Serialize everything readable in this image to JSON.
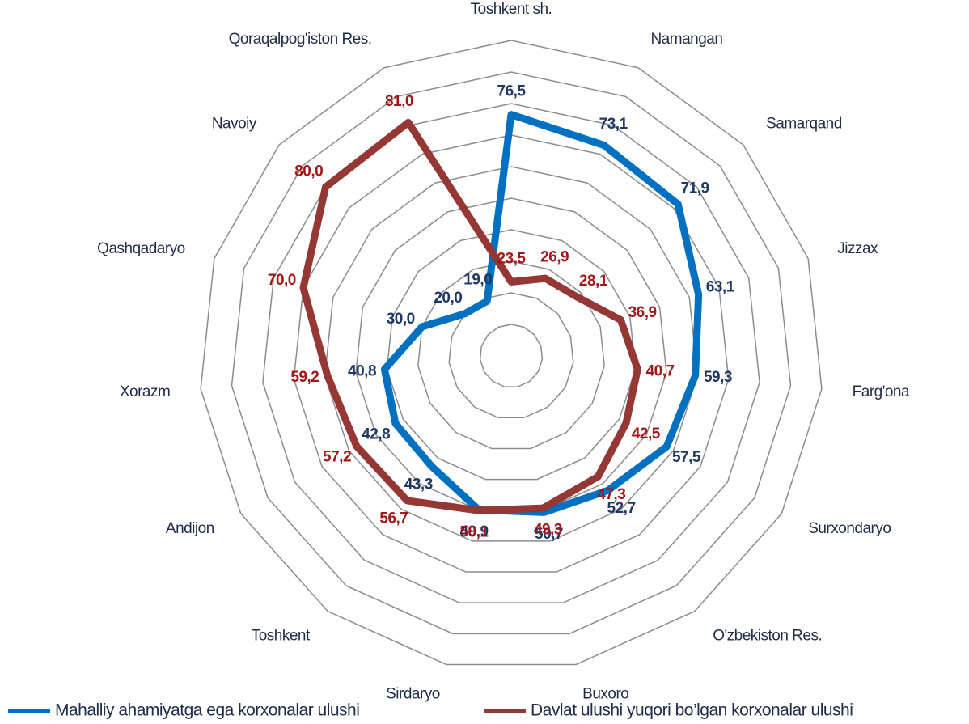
{
  "chart_data": {
    "type": "radar",
    "categories": [
      "Toshkent sh.",
      "Namangan",
      "Samarqand",
      "Jizzax",
      "Farg'ona",
      "Surxondaryo",
      "O'zbekiston Res.",
      "Buxoro",
      "Sirdaryo",
      "Toshkent",
      "Andijon",
      "Xorazm",
      "Qashqadaryo",
      "Navoiy",
      "Qoraqalpog'iston Res."
    ],
    "series": [
      {
        "name": "Mahalliy ahamiyatga ega korxonalar ulushi",
        "color": "#0070c0",
        "label_color": "#1f3864",
        "values": [
          76.5,
          73.1,
          71.9,
          63.1,
          59.3,
          57.5,
          52.7,
          50.7,
          49.9,
          43.3,
          42.8,
          40.8,
          30.0,
          20.0,
          19.0
        ],
        "value_labels": [
          "76,5",
          "73,1",
          "71,9",
          "63,1",
          "59,3",
          "57,5",
          "52,7",
          "50,7",
          "49,9",
          "43,3",
          "42,8",
          "40,8",
          "30,0",
          "20,0",
          "19,0"
        ]
      },
      {
        "name": "Davlat ulushi yuqori bo’lgan korxonalar ulushi",
        "color": "#953735",
        "label_color": "#a01818",
        "values": [
          23.5,
          26.9,
          28.1,
          36.9,
          40.7,
          42.5,
          47.3,
          49.3,
          50.1,
          56.7,
          57.2,
          59.2,
          70.0,
          80.0,
          81.0
        ],
        "value_labels": [
          "23,5",
          "26,9",
          "28,1",
          "36,9",
          "40,7",
          "42,5",
          "47,3",
          "49,3",
          "50,1",
          "56,7",
          "57,2",
          "59,2",
          "70,0",
          "80,0",
          "81,0"
        ]
      }
    ],
    "ylim": [
      0,
      100
    ],
    "yticks": [
      10,
      20,
      30,
      40,
      50,
      60,
      70,
      80,
      90,
      100
    ],
    "grid": true,
    "legend": "bottom"
  }
}
